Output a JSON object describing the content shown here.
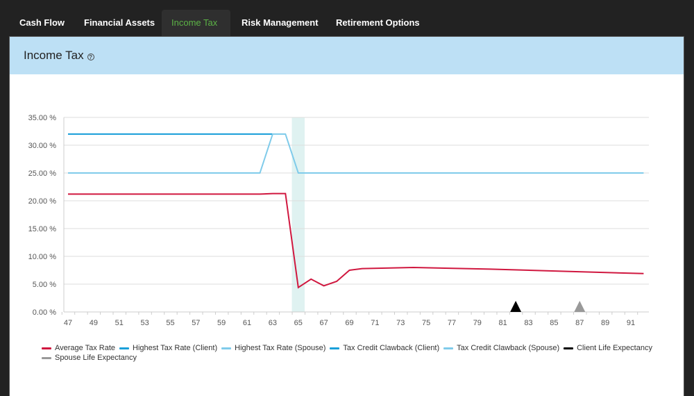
{
  "tabs": [
    {
      "label": "Cash Flow",
      "active": false
    },
    {
      "label": "Financial Assets",
      "active": false
    },
    {
      "label": "Income Tax",
      "active": true
    },
    {
      "label": "Risk Management",
      "active": false
    },
    {
      "label": "Retirement Options",
      "active": false
    }
  ],
  "panel": {
    "title": "Income Tax",
    "help_icon": "?"
  },
  "colors": {
    "active_tab_text": "#5cb346",
    "header_bg": "#bde0f5",
    "average": "#d0173f",
    "client_blue": "#1a9fd9",
    "spouse_blue": "#7fcbea",
    "client_life": "#000000",
    "spouse_life": "#999999",
    "highlight_band": "#dff2f1"
  },
  "chart_data": {
    "type": "line",
    "title": "Income Tax",
    "xlabel": "",
    "ylabel": "",
    "ylim": [
      0,
      35
    ],
    "yticks": [
      "0.00 %",
      "5.00 %",
      "10.00 %",
      "15.00 %",
      "20.00 %",
      "25.00 %",
      "30.00 %",
      "35.00 %"
    ],
    "xticks": [
      "47",
      "49",
      "51",
      "53",
      "55",
      "57",
      "59",
      "61",
      "63",
      "65",
      "67",
      "69",
      "71",
      "73",
      "75",
      "77",
      "79",
      "81",
      "83",
      "85",
      "87",
      "89",
      "91"
    ],
    "x_range": [
      47,
      92
    ],
    "grid": true,
    "legend_position": "bottom",
    "highlight_band": {
      "from": 64.5,
      "to": 65.5
    },
    "series": [
      {
        "name": "Average Tax Rate",
        "color": "#d0173f",
        "points": [
          [
            47,
            21.2
          ],
          [
            62,
            21.2
          ],
          [
            63,
            21.3
          ],
          [
            64,
            21.3
          ],
          [
            65,
            4.4
          ],
          [
            66,
            5.9
          ],
          [
            67,
            4.7
          ],
          [
            68,
            5.5
          ],
          [
            69,
            7.5
          ],
          [
            70,
            7.8
          ],
          [
            74,
            8.0
          ],
          [
            80,
            7.7
          ],
          [
            86,
            7.3
          ],
          [
            92,
            6.9
          ]
        ]
      },
      {
        "name": "Highest Tax Rate (Client)",
        "color": "#1a9fd9",
        "points": [
          [
            47,
            32.0
          ],
          [
            63,
            32.0
          ]
        ]
      },
      {
        "name": "Highest Tax Rate (Spouse)",
        "color": "#7fcbea",
        "points": [
          [
            47,
            25.0
          ],
          [
            62,
            25.0
          ],
          [
            63,
            32.0
          ],
          [
            64,
            32.0
          ],
          [
            65,
            25.0
          ],
          [
            92,
            25.0
          ]
        ]
      },
      {
        "name": "Tax Credit Clawback (Client)",
        "color": "#1a9fd9",
        "points": []
      },
      {
        "name": "Tax Credit Clawback (Spouse)",
        "color": "#7fcbea",
        "points": []
      },
      {
        "name": "Client Life Expectancy",
        "color": "#000000",
        "marker": "triangle",
        "x": 82
      },
      {
        "name": "Spouse Life Expectancy",
        "color": "#999999",
        "marker": "triangle",
        "x": 87
      }
    ]
  }
}
